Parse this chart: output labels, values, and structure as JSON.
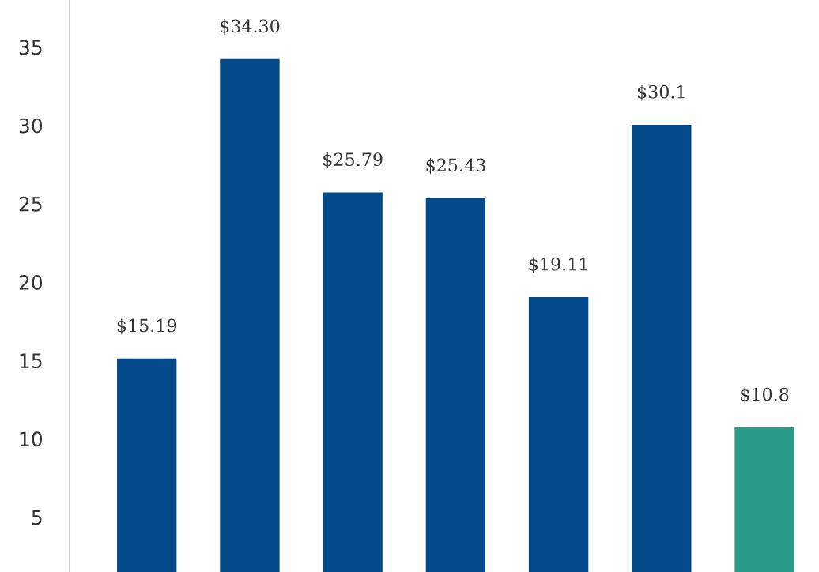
{
  "chart_data": {
    "type": "bar",
    "categories": [
      null,
      null,
      null,
      null,
      null,
      null,
      null
    ],
    "values": [
      15.19,
      34.3,
      25.79,
      25.43,
      19.11,
      30.1,
      10.8
    ],
    "value_labels": [
      "$15.19",
      "$34.30",
      "$25.79",
      "$25.43",
      "$19.11",
      "$30.1",
      "$10.8"
    ],
    "colors": [
      "#034a89",
      "#034a89",
      "#034a89",
      "#034a89",
      "#034a89",
      "#034a89",
      "#299b88"
    ],
    "ylim": [
      1.5,
      38
    ],
    "yticks": [
      5,
      10,
      15,
      20,
      25,
      30,
      35
    ],
    "grid": false,
    "legend": false
  }
}
